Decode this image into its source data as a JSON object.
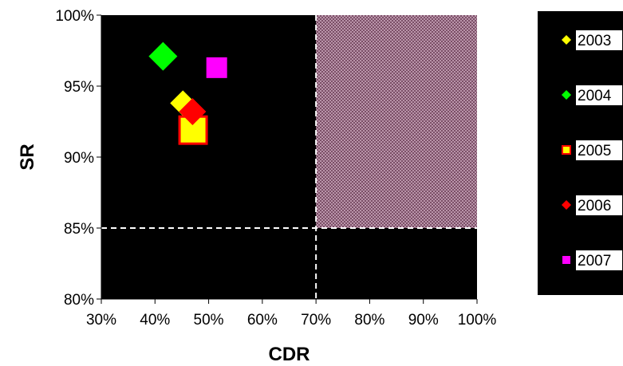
{
  "chart_data": {
    "type": "scatter",
    "title": "",
    "xlabel": "CDR",
    "ylabel": "SR",
    "xlim": [
      0.3,
      1.0
    ],
    "ylim": [
      0.8,
      1.0
    ],
    "x_ticks": [
      {
        "value": 0.3,
        "label": "30%"
      },
      {
        "value": 0.4,
        "label": "40%"
      },
      {
        "value": 0.5,
        "label": "50%"
      },
      {
        "value": 0.6,
        "label": "60%"
      },
      {
        "value": 0.7,
        "label": "70%"
      },
      {
        "value": 0.8,
        "label": "80%"
      },
      {
        "value": 0.9,
        "label": "90%"
      },
      {
        "value": 1.0,
        "label": "100%"
      }
    ],
    "y_ticks": [
      {
        "value": 0.8,
        "label": "80%"
      },
      {
        "value": 0.85,
        "label": "85%"
      },
      {
        "value": 0.9,
        "label": "90%"
      },
      {
        "value": 0.95,
        "label": "95%"
      },
      {
        "value": 1.0,
        "label": "100%"
      }
    ],
    "thresholds": {
      "x": 0.7,
      "y": 0.85
    },
    "target_region": {
      "x": [
        0.7,
        1.0
      ],
      "y": [
        0.85,
        1.0
      ],
      "color": "#7a4a63"
    },
    "plot_background": "#000000",
    "grid": false,
    "legend_position": "right",
    "series": [
      {
        "name": "2003",
        "marker": "diamond",
        "color": "#ffff00",
        "border": "#ffff00",
        "points": [
          {
            "x": 0.452,
            "y": 0.938
          }
        ]
      },
      {
        "name": "2004",
        "marker": "diamond",
        "color": "#00ff00",
        "border": "#00ff00",
        "points": [
          {
            "x": 0.415,
            "y": 0.971
          }
        ]
      },
      {
        "name": "2005",
        "marker": "square",
        "color": "#ffff00",
        "border": "#ff0000",
        "points": [
          {
            "x": 0.471,
            "y": 0.919
          }
        ]
      },
      {
        "name": "2006",
        "marker": "diamond",
        "color": "#ff0000",
        "border": "#ff0000",
        "points": [
          {
            "x": 0.47,
            "y": 0.932
          }
        ]
      },
      {
        "name": "2007",
        "marker": "square",
        "color": "#ff00ff",
        "border": "#ff00ff",
        "points": [
          {
            "x": 0.515,
            "y": 0.963
          }
        ]
      }
    ]
  }
}
